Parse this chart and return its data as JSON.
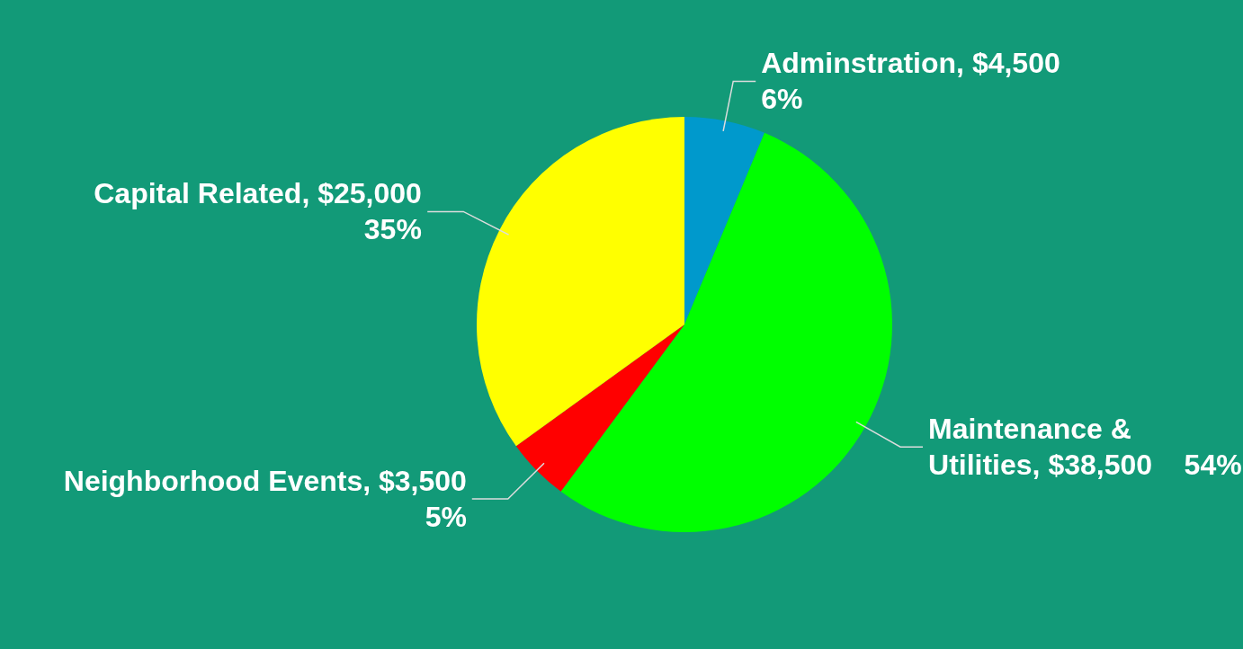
{
  "chart_data": {
    "type": "pie",
    "categories": [
      "Adminstration",
      "Maintenance & Utilities",
      "Neighborhood Events",
      "Capital Related"
    ],
    "values": [
      4500,
      38500,
      3500,
      25000
    ],
    "value_labels": [
      "$4,500    6%",
      "$38,500    54%",
      "$3,500    5%",
      "$25,000    35%"
    ],
    "colors": [
      "#0099cc",
      "#00ff00",
      "#ff0000",
      "#ffff00"
    ],
    "legend": false
  }
}
